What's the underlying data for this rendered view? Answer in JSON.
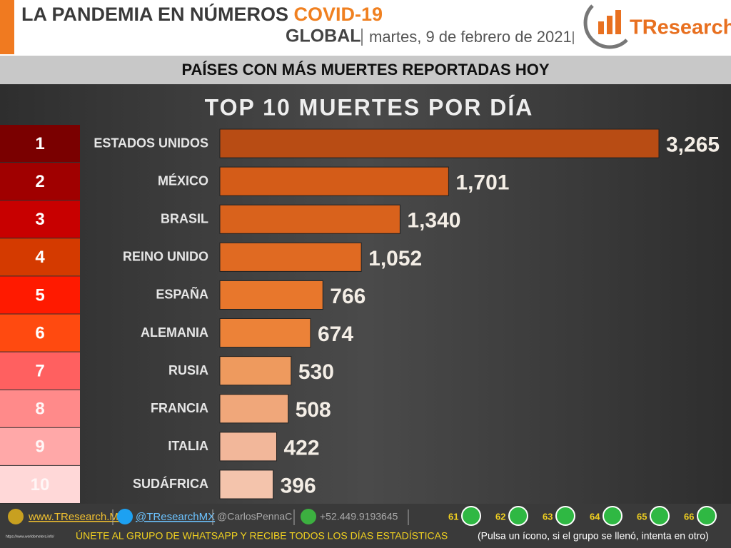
{
  "header": {
    "title": "LA PANDEMIA EN NÚMEROS",
    "highlight": "COVID-19",
    "scope": "GLOBAL",
    "date": "martes, 9 de febrero de 2021",
    "logo": "TResearch"
  },
  "section_title": "PAÍSES CON MÁS MUERTES REPORTADAS HOY",
  "chart_data": {
    "type": "bar",
    "orientation": "horizontal",
    "title": "TOP 10 MUERTES POR DÍA",
    "ranks": [
      "1",
      "2",
      "3",
      "4",
      "5",
      "6",
      "7",
      "8",
      "9",
      "10"
    ],
    "categories": [
      "ESTADOS UNIDOS",
      "MÉXICO",
      "BRASIL",
      "REINO UNIDO",
      "ESPAÑA",
      "ALEMANIA",
      "RUSIA",
      "FRANCIA",
      "ITALIA",
      "SUDÁFRICA"
    ],
    "values": [
      3265,
      1701,
      1340,
      1052,
      766,
      674,
      530,
      508,
      422,
      396
    ],
    "value_labels": [
      "3,265",
      "1,701",
      "1,340",
      "1,052",
      "766",
      "674",
      "530",
      "508",
      "422",
      "396"
    ],
    "bar_colors": [
      "#b84c14",
      "#d45c18",
      "#d9621c",
      "#e06a22",
      "#e8772c",
      "#ec8238",
      "#ee9a5e",
      "#f0a77a",
      "#f2b79a",
      "#f4c4ac"
    ],
    "rank_colors": [
      "#7a0000",
      "#a00000",
      "#c80000",
      "#d43a00",
      "#ff1a00",
      "#ff4a10",
      "#ff6060",
      "#ff8a8a",
      "#ffa8a8",
      "#ffd8d8"
    ]
  },
  "footer": {
    "website": "www.TResearch.Mx",
    "twitter": "@TResearchMX",
    "personal": "@CarlosPennaC",
    "phone": "+52.449.9193645",
    "groups": [
      "61",
      "62",
      "63",
      "64",
      "65",
      "66"
    ],
    "cta": "ÚNETE AL GRUPO DE WHATSAPP Y RECIBE TODOS LOS DÍAS ESTADÍSTICAS",
    "note": "(Pulsa un ícono, si el grupo se llenó, intenta en otro)",
    "source": "https://www.worldometers.info/"
  }
}
